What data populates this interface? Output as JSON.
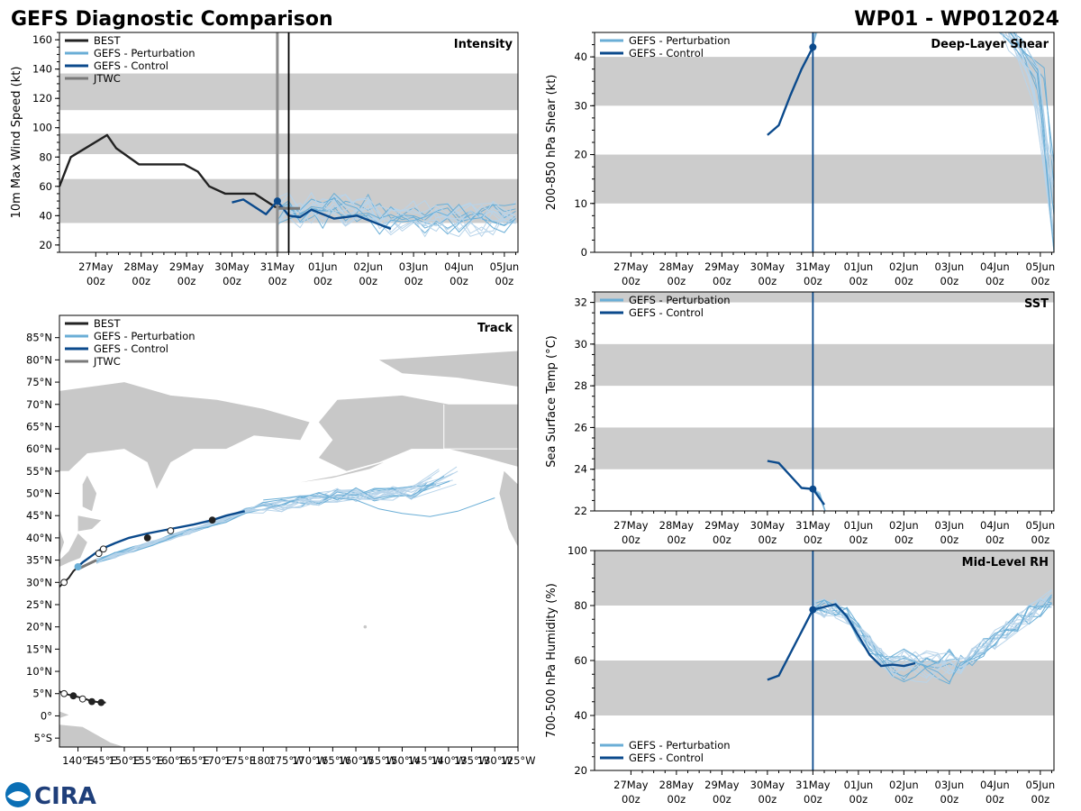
{
  "header": {
    "left_title": "GEFS Diagnostic Comparison",
    "right_title": "WP01 - WP012024"
  },
  "logo": {
    "text": "CIRA"
  },
  "colors": {
    "best": "#222222",
    "control": "#0b4a8c",
    "perturbation": "#6aaed6",
    "member": "#b8d4ea",
    "jtwc": "#7a7a7a",
    "band": "#cccccc",
    "land": "#c8c8c8"
  },
  "time_axis": {
    "ticks": [
      {
        "day": 0,
        "top": "27May",
        "bottom": "00z"
      },
      {
        "day": 1,
        "top": "28May",
        "bottom": "00z"
      },
      {
        "day": 2,
        "top": "29May",
        "bottom": "00z"
      },
      {
        "day": 3,
        "top": "30May",
        "bottom": "00z"
      },
      {
        "day": 4,
        "top": "31May",
        "bottom": "00z"
      },
      {
        "day": 5,
        "top": "01Jun",
        "bottom": "00z"
      },
      {
        "day": 6,
        "top": "02Jun",
        "bottom": "00z"
      },
      {
        "day": 7,
        "top": "03Jun",
        "bottom": "00z"
      },
      {
        "day": 8,
        "top": "04Jun",
        "bottom": "00z"
      },
      {
        "day": 9,
        "top": "05Jun",
        "bottom": "00z"
      }
    ]
  },
  "chart_data": [
    {
      "id": "intensity",
      "type": "line",
      "title": "Intensity",
      "ylabel": "10m Max Wind Speed (kt)",
      "xlim": [
        -0.8,
        9.3
      ],
      "ylim": [
        15,
        165
      ],
      "yticks": [
        20,
        40,
        60,
        80,
        100,
        120,
        140,
        160
      ],
      "bands": [
        [
          35,
          65
        ],
        [
          82,
          96
        ],
        [
          112,
          137
        ]
      ],
      "legend": [
        "BEST",
        "GEFS - Perturbation",
        "GEFS - Control",
        "JTWC"
      ],
      "vlines": [
        {
          "x": 4.0,
          "color": "gray"
        },
        {
          "x": 4.25,
          "color": "black"
        }
      ],
      "series": [
        {
          "name": "BEST",
          "x": [
            -0.8,
            -0.55,
            0.25,
            0.45,
            0.95,
            1.45,
            1.95,
            2.25,
            2.5,
            2.85,
            3.5,
            3.95,
            4.2
          ],
          "y": [
            60,
            80,
            95,
            86,
            75,
            75,
            75,
            70,
            60,
            55,
            55,
            46,
            45
          ]
        },
        {
          "name": "GEFS - Control",
          "x": [
            3.0,
            3.25,
            3.75,
            4.0,
            4.25,
            4.5,
            4.75,
            5.25,
            5.75,
            6.25,
            6.5
          ],
          "y": [
            49,
            51,
            41,
            50,
            40,
            39,
            44,
            38,
            40,
            34,
            31
          ]
        },
        {
          "name": "JTWC",
          "x": [
            4.0,
            4.25,
            4.5
          ],
          "y": [
            45,
            45,
            45
          ]
        }
      ]
    },
    {
      "id": "shear",
      "type": "line",
      "title": "Deep-Layer Shear",
      "ylabel": "200-850 hPa Shear (kt)",
      "xlim": [
        -0.8,
        9.3
      ],
      "ylim": [
        0,
        45
      ],
      "yticks": [
        0,
        10,
        20,
        30,
        40
      ],
      "bands": [
        [
          10,
          20
        ],
        [
          30,
          40
        ]
      ],
      "legend": [
        "GEFS - Perturbation",
        "GEFS - Control"
      ],
      "vlines": [
        {
          "x": 4.0,
          "color": "control"
        }
      ],
      "series": [
        {
          "name": "GEFS - Control",
          "x": [
            3.0,
            3.25,
            3.5,
            3.75,
            4.0
          ],
          "y": [
            24,
            26,
            32,
            37.5,
            42
          ]
        }
      ]
    },
    {
      "id": "sst",
      "type": "line",
      "title": "SST",
      "ylabel": "Sea Surface Temp (°C)",
      "xlim": [
        -0.8,
        9.3
      ],
      "ylim": [
        22,
        32.5
      ],
      "yticks": [
        22,
        24,
        26,
        28,
        30,
        32
      ],
      "bands": [
        [
          24,
          26
        ],
        [
          28,
          30
        ],
        [
          32,
          32.5
        ]
      ],
      "legend": [
        "GEFS - Perturbation",
        "GEFS - Control"
      ],
      "vlines": [
        {
          "x": 4.0,
          "color": "control"
        }
      ],
      "series": [
        {
          "name": "GEFS - Control",
          "x": [
            3.0,
            3.25,
            3.75,
            4.0,
            4.25
          ],
          "y": [
            24.4,
            24.3,
            23.1,
            23.05,
            22.3
          ]
        }
      ]
    },
    {
      "id": "rh",
      "type": "line",
      "title": "Mid-Level RH",
      "ylabel": "700-500 hPa Humidity (%)",
      "xlim": [
        -0.8,
        9.3
      ],
      "ylim": [
        20,
        100
      ],
      "yticks": [
        20,
        40,
        60,
        80,
        100
      ],
      "bands": [
        [
          40,
          60
        ],
        [
          80,
          100
        ]
      ],
      "legend": [
        "GEFS - Perturbation",
        "GEFS - Control"
      ],
      "vlines": [
        {
          "x": 4.0,
          "color": "control"
        }
      ],
      "series": [
        {
          "name": "GEFS - Control",
          "x": [
            3.0,
            3.25,
            4.0,
            4.25,
            4.5,
            4.75,
            5.0,
            5.25,
            5.5,
            5.75,
            6.0,
            6.25
          ],
          "y": [
            53,
            54.5,
            78.5,
            79.5,
            80.5,
            76,
            69,
            62,
            58,
            58.5,
            58,
            59
          ]
        }
      ]
    },
    {
      "id": "track",
      "type": "map",
      "title": "Track",
      "lon_range": [
        136,
        235
      ],
      "lat_range": [
        -7,
        90
      ],
      "xticks": [
        {
          "lon": 140,
          "label": "140°E"
        },
        {
          "lon": 145,
          "label": "145°E"
        },
        {
          "lon": 150,
          "label": "150°E"
        },
        {
          "lon": 155,
          "label": "155°E"
        },
        {
          "lon": 160,
          "label": "160°E"
        },
        {
          "lon": 165,
          "label": "165°E"
        },
        {
          "lon": 170,
          "label": "170°E"
        },
        {
          "lon": 175,
          "label": "175°E"
        },
        {
          "lon": 180,
          "label": "180°"
        },
        {
          "lon": 185,
          "label": "175°W"
        },
        {
          "lon": 190,
          "label": "170°W"
        },
        {
          "lon": 195,
          "label": "165°W"
        },
        {
          "lon": 200,
          "label": "160°W"
        },
        {
          "lon": 205,
          "label": "155°W"
        },
        {
          "lon": 210,
          "label": "150°W"
        },
        {
          "lon": 215,
          "label": "145°W"
        },
        {
          "lon": 220,
          "label": "140°W"
        },
        {
          "lon": 225,
          "label": "135°W"
        },
        {
          "lon": 230,
          "label": "130°W"
        },
        {
          "lon": 235,
          "label": "125°W"
        }
      ],
      "yticks": [
        {
          "lat": -5,
          "label": "5°S"
        },
        {
          "lat": 0,
          "label": "0°"
        },
        {
          "lat": 5,
          "label": "5°N"
        },
        {
          "lat": 10,
          "label": "10°N"
        },
        {
          "lat": 15,
          "label": "15°N"
        },
        {
          "lat": 20,
          "label": "20°N"
        },
        {
          "lat": 25,
          "label": "25°N"
        },
        {
          "lat": 30,
          "label": "30°N"
        },
        {
          "lat": 35,
          "label": "35°N"
        },
        {
          "lat": 40,
          "label": "40°N"
        },
        {
          "lat": 45,
          "label": "45°N"
        },
        {
          "lat": 50,
          "label": "50°N"
        },
        {
          "lat": 55,
          "label": "55°N"
        },
        {
          "lat": 60,
          "label": "60°N"
        },
        {
          "lat": 65,
          "label": "65°N"
        },
        {
          "lat": 70,
          "label": "70°N"
        },
        {
          "lat": 75,
          "label": "75°N"
        },
        {
          "lat": 80,
          "label": "80°N"
        },
        {
          "lat": 85,
          "label": "85°N"
        }
      ],
      "legend": [
        "BEST",
        "GEFS - Perturbation",
        "GEFS - Control",
        "JTWC"
      ],
      "best_south": [
        [
          136,
          5.5
        ],
        [
          137,
          5
        ],
        [
          139,
          4.5
        ],
        [
          141,
          4
        ],
        [
          143,
          3.3
        ],
        [
          145,
          3
        ],
        [
          146,
          3
        ]
      ],
      "best_north": [
        [
          136,
          29
        ],
        [
          137,
          30
        ],
        [
          138,
          31
        ],
        [
          139,
          32.5
        ],
        [
          140,
          33.5
        ]
      ],
      "control": [
        [
          140,
          33.5
        ],
        [
          141,
          34.5
        ],
        [
          143,
          36
        ],
        [
          145,
          37.5
        ],
        [
          148,
          38.8
        ],
        [
          151,
          40
        ],
        [
          155,
          41
        ],
        [
          160,
          42
        ],
        [
          165,
          43
        ],
        [
          169,
          44
        ],
        [
          172,
          45
        ],
        [
          176,
          46
        ]
      ],
      "jtwc": [
        [
          140,
          33
        ],
        [
          142,
          34
        ],
        [
          144,
          35
        ]
      ],
      "perturbation_outlier": [
        [
          180,
          48.5
        ],
        [
          190,
          49.5
        ],
        [
          200,
          48.5
        ],
        [
          205,
          46.5
        ],
        [
          210,
          45.5
        ],
        [
          216,
          44.8
        ],
        [
          222,
          46
        ],
        [
          230,
          49
        ]
      ],
      "island": [
        [
          202,
          20
        ]
      ]
    }
  ]
}
